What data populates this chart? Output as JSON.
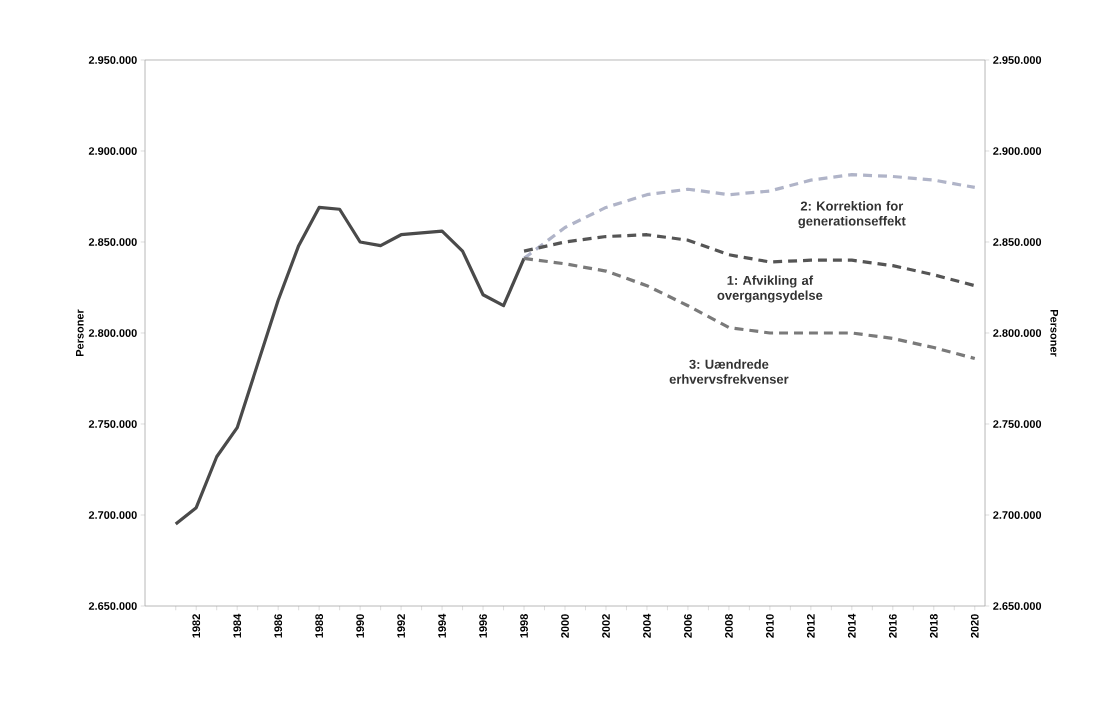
{
  "chart_data": {
    "type": "line",
    "ylabel": "Personer",
    "y2label": "Personer",
    "xlim": [
      1979.5,
      2020.5
    ],
    "xticks": [
      {
        "value": 1981,
        "label": null
      },
      1982,
      {
        "value": 1983,
        "label": null
      },
      1984,
      {
        "value": 1985,
        "label": null
      },
      1986,
      {
        "value": 1987,
        "label": null
      },
      1988,
      {
        "value": 1989,
        "label": null
      },
      1990,
      {
        "value": 1991,
        "label": null
      },
      1992,
      {
        "value": 1993,
        "label": null
      },
      1994,
      {
        "value": 1995,
        "label": null
      },
      1996,
      {
        "value": 1997,
        "label": null
      },
      1998,
      {
        "value": 1999,
        "label": null
      },
      2000,
      {
        "value": 2001,
        "label": null
      },
      2002,
      {
        "value": 2003,
        "label": null
      },
      2004,
      {
        "value": 2005,
        "label": null
      },
      2006,
      {
        "value": 2007,
        "label": null
      },
      2008,
      {
        "value": 2009,
        "label": null
      },
      2010,
      {
        "value": 2011,
        "label": null
      },
      2012,
      {
        "value": 2013,
        "label": null
      },
      2014,
      {
        "value": 2015,
        "label": null
      },
      2016,
      {
        "value": 2017,
        "label": null
      },
      2018,
      {
        "value": 2019,
        "label": null
      },
      2020
    ],
    "ylim": [
      2650000,
      2950000
    ],
    "yticks": [
      {
        "value": 2650000,
        "label": "2.650.000"
      },
      {
        "value": 2700000,
        "label": "2.700.000"
      },
      {
        "value": 2750000,
        "label": "2.750.000"
      },
      {
        "value": 2800000,
        "label": "2.800.000"
      },
      {
        "value": 2850000,
        "label": "2.850.000"
      },
      {
        "value": 2900000,
        "label": "2.900.000"
      },
      {
        "value": 2950000,
        "label": "2.950.000"
      }
    ],
    "y2lim": [
      2650000,
      2950000
    ],
    "y2ticks": [
      {
        "value": 2650000,
        "label": "2.650.000"
      },
      {
        "value": 2700000,
        "label": "2.700.000"
      },
      {
        "value": 2750000,
        "label": "2.750.000"
      },
      {
        "value": 2800000,
        "label": "2.800.000"
      },
      {
        "value": 2850000,
        "label": "2.850.000"
      },
      {
        "value": 2900000,
        "label": "2.900.000"
      },
      {
        "value": 2950000,
        "label": "2.950.000"
      }
    ],
    "grid": false,
    "legend": false,
    "marker": "none",
    "series": [
      {
        "color": "#4a4a4a",
        "line_style": "solid",
        "x": [
          1981,
          1982,
          1983,
          1984,
          1985,
          1986,
          1987,
          1988,
          1989,
          1990,
          1991,
          1992,
          1993,
          1994,
          1995,
          1996,
          1997,
          1998
        ],
        "values": [
          2695000,
          2704000,
          2732000,
          2748000,
          2783000,
          2818000,
          2848000,
          2869000,
          2868000,
          2850000,
          2848000,
          2854000,
          2855000,
          2856000,
          2845000,
          2821000,
          2815000,
          2841000
        ]
      },
      {
        "name": "2: Korrektion for generationseffekt",
        "color": "#b0b4c8",
        "line_style": "dashed",
        "x": [
          1998,
          2000,
          2002,
          2004,
          2006,
          2008,
          2010,
          2012,
          2014,
          2016,
          2018,
          2020
        ],
        "values": [
          2841000,
          2858000,
          2869000,
          2876000,
          2879000,
          2876000,
          2878000,
          2884000,
          2887000,
          2886000,
          2884000,
          2880000
        ]
      },
      {
        "name": "1: Afvikling af overgangsydelse",
        "color": "#555555",
        "line_style": "dashed",
        "x": [
          1998,
          2000,
          2002,
          2004,
          2006,
          2008,
          2010,
          2012,
          2014,
          2016,
          2018,
          2020
        ],
        "values": [
          2845000,
          2850000,
          2853000,
          2854000,
          2851000,
          2843000,
          2839000,
          2840000,
          2840000,
          2837000,
          2832000,
          2826000
        ]
      },
      {
        "name": "3: Uændrede erhvervsfrekvenser",
        "color": "#7a7a7a",
        "line_style": "dashed",
        "x": [
          1998,
          2000,
          2002,
          2004,
          2006,
          2008,
          2010,
          2012,
          2014,
          2016,
          2018,
          2020
        ],
        "values": [
          2841000,
          2838000,
          2834000,
          2826000,
          2815000,
          2803000,
          2800000,
          2800000,
          2800000,
          2797000,
          2792000,
          2786000
        ]
      }
    ]
  }
}
